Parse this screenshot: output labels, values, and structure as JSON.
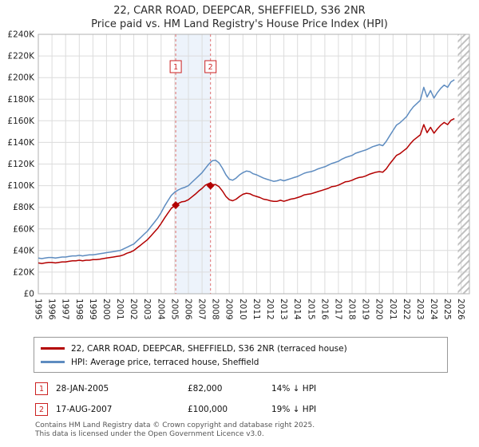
{
  "chart_data": {
    "type": "line",
    "title": "22, CARR ROAD, DEEPCAR, SHEFFIELD, S36 2NR",
    "subtitle": "Price paid vs. HM Land Registry's House Price Index (HPI)",
    "grid": true,
    "legend_position": "below",
    "x_start": 1995,
    "x_step": 0.25,
    "x_axis": {
      "min": 1995,
      "max": 2026.6,
      "first_year": 1995,
      "last_year": 2026
    },
    "y_axis": {
      "min_k": 0,
      "max_k": 240,
      "tick_step_k": 20,
      "tick_prefix": "£",
      "tick_suffix": "K"
    },
    "band_color": "#edf3fb",
    "future_hatch_start": 2025.75,
    "series": [
      {
        "name": "22, CARR ROAD, DEEPCAR, SHEFFIELD, S36 2NR (terraced house)",
        "color": "#b30000",
        "values_k": [
          28.5,
          28,
          28.5,
          29,
          29,
          28.5,
          29,
          29.5,
          29.5,
          30,
          30.5,
          30.5,
          31,
          30.5,
          31,
          31,
          31.5,
          31.5,
          32,
          32.5,
          33,
          33.5,
          34,
          34.5,
          35,
          36,
          37.5,
          38.5,
          40,
          42.5,
          45,
          47.5,
          50,
          53.5,
          57,
          60.5,
          65,
          70,
          74.5,
          79,
          81.5,
          83.5,
          85,
          85.5,
          87,
          89.5,
          92,
          95,
          97.5,
          100.5,
          102,
          101,
          101,
          99,
          95,
          90,
          87,
          86,
          87.5,
          90,
          92,
          93,
          92.5,
          91,
          90,
          89,
          87.5,
          87,
          86,
          85.5,
          85.5,
          86.5,
          85.5,
          86.5,
          87.5,
          88,
          89,
          90,
          91.5,
          92,
          92.5,
          93.5,
          94.5,
          95.5,
          96.5,
          97.5,
          99,
          99.5,
          100.5,
          102,
          103.5,
          104,
          105,
          106.5,
          107.5,
          108,
          109,
          110.5,
          111.5,
          112.5,
          113,
          112.5,
          115.5,
          120,
          124,
          128,
          129.5,
          132,
          134.5,
          138.5,
          142,
          144.5,
          147,
          156.5,
          149,
          154,
          148.5,
          152.5,
          156,
          158.5,
          156.5,
          160.5,
          162
        ]
      },
      {
        "name": "HPI: Average price, terraced house, Sheffield",
        "color": "#5e8cc0",
        "values_k": [
          33,
          32.5,
          33,
          33.5,
          33.5,
          33,
          33.5,
          34,
          34,
          34.5,
          35,
          35,
          35.5,
          35,
          35.5,
          36,
          36,
          36.5,
          37,
          37.5,
          38,
          38.5,
          39,
          39.5,
          40,
          41.5,
          43,
          44.5,
          46,
          49,
          52,
          55,
          58,
          62,
          66,
          70,
          75,
          81,
          86,
          91,
          94,
          96,
          97.5,
          98.5,
          100,
          103,
          106,
          109,
          112,
          116,
          120,
          123,
          123.5,
          121,
          116,
          110,
          106,
          105,
          107,
          110,
          112,
          113.5,
          113,
          111,
          110,
          108.5,
          107,
          106,
          105,
          104,
          104.5,
          105.5,
          104.5,
          105.5,
          106.5,
          107.5,
          108.5,
          110,
          111.5,
          112.5,
          113,
          114,
          115.5,
          116.5,
          117.5,
          119,
          120.5,
          121.5,
          122.5,
          124.5,
          126,
          127,
          128,
          130,
          131,
          132,
          133,
          134.5,
          136,
          137,
          138,
          137,
          141,
          146,
          151,
          156,
          158,
          161,
          164,
          169,
          173,
          176,
          179,
          191,
          182,
          188,
          181,
          186,
          190,
          193,
          191,
          196,
          198
        ]
      }
    ],
    "sales": [
      {
        "label": "1",
        "date": "28-JAN-2005",
        "x": 2005.07,
        "price_k": 82,
        "price_label": "£82,000",
        "hpi_note": "14% ↓ HPI"
      },
      {
        "label": "2",
        "date": "17-AUG-2007",
        "x": 2007.62,
        "price_k": 100,
        "price_label": "£100,000",
        "hpi_note": "19% ↓ HPI"
      }
    ]
  },
  "footer": {
    "line1": "Contains HM Land Registry data © Crown copyright and database right 2025.",
    "line2": "This data is licensed under the Open Government Licence v3.0."
  }
}
